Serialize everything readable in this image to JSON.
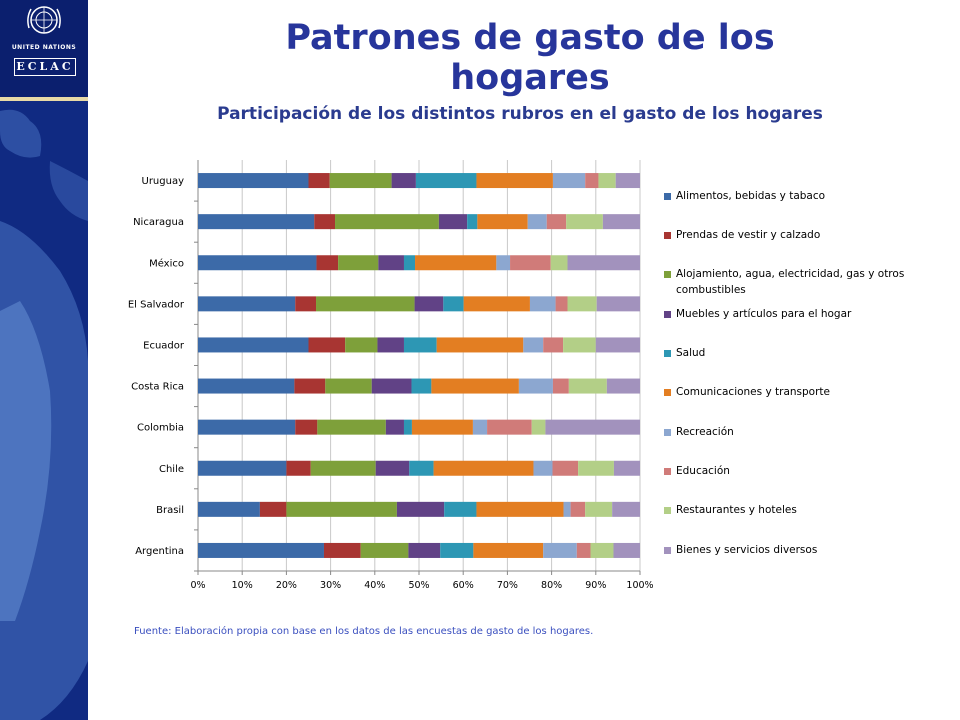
{
  "header": {
    "page_title": "Patrones de gasto de los hogares",
    "un_label": "UNITED NATIONS",
    "eclac_label": "ECLAC"
  },
  "source_note": "Fuente: Elaboración propia con base en los datos de las encuestas de gasto de los hogares.",
  "colors": {
    "sidebar": "#0b1f6e",
    "title": "#27359b"
  },
  "chart_data": {
    "type": "bar",
    "orientation": "horizontal",
    "stacked": "percent",
    "title": "Participación de los distintos rubros en el gasto de los hogares",
    "categories": [
      "Argentina",
      "Brasil",
      "Chile",
      "Colombia",
      "Costa Rica",
      "Ecuador",
      "El Salvador",
      "México",
      "Nicaragua",
      "Uruguay"
    ],
    "xlim": [
      0,
      100
    ],
    "xticks": [
      "0%",
      "10%",
      "20%",
      "30%",
      "40%",
      "50%",
      "60%",
      "70%",
      "80%",
      "90%",
      "100%"
    ],
    "legend_position": "right",
    "series": [
      {
        "name": "Alimentos, bebidas y tabaco",
        "color": "#3c6aa8",
        "values": [
          28.5,
          14,
          20,
          22,
          21.8,
          25,
          22,
          26.8,
          26.3,
          25
        ]
      },
      {
        "name": "Prendas de vestir y calzado",
        "color": "#a83532",
        "values": [
          8.3,
          6,
          5.5,
          5,
          7,
          8.3,
          4.7,
          4.9,
          4.7,
          4.8
        ]
      },
      {
        "name": "Alojamiento, agua, electricidad, gas y otros combustibles",
        "color": "#7ea03a",
        "values": [
          10.8,
          25,
          14.7,
          15.5,
          10.5,
          7.3,
          22.3,
          9.1,
          23.5,
          14
        ]
      },
      {
        "name": "Muebles y artículos para el hogar",
        "color": "#614286",
        "values": [
          7.2,
          10.7,
          7.6,
          4.1,
          9,
          6,
          6.5,
          5.8,
          6.4,
          5.5
        ]
      },
      {
        "name": "Salud",
        "color": "#2d97b4",
        "values": [
          7.5,
          7.3,
          5.5,
          1.8,
          4.5,
          7.4,
          4.6,
          2.5,
          2.3,
          13.7
        ]
      },
      {
        "name": "Comunicaciones y transporte",
        "color": "#e37e22",
        "values": [
          15.8,
          19.7,
          22.6,
          13.8,
          19.8,
          19.6,
          15,
          18.4,
          11.4,
          17.3
        ]
      },
      {
        "name": "Recreación",
        "color": "#8ca7d0",
        "values": [
          7.6,
          1.6,
          4.3,
          3.2,
          7.7,
          4.5,
          5.8,
          3.1,
          4.3,
          7.3
        ]
      },
      {
        "name": "Educación",
        "color": "#d07b79",
        "values": [
          3.1,
          3.3,
          5.8,
          10.1,
          3.6,
          4.5,
          2.7,
          9.2,
          4.4,
          3
        ]
      },
      {
        "name": "Restaurantes y hoteles",
        "color": "#b3cf87",
        "values": [
          5.2,
          6.1,
          8.1,
          3.1,
          8.6,
          7.4,
          6.6,
          3.8,
          8.3,
          3.9
        ]
      },
      {
        "name": "Bienes y servicios diversos",
        "color": "#a292bd",
        "values": [
          6,
          6.3,
          5.9,
          21.4,
          7.5,
          10,
          9.8,
          16.4,
          8.4,
          5.5
        ]
      }
    ]
  }
}
